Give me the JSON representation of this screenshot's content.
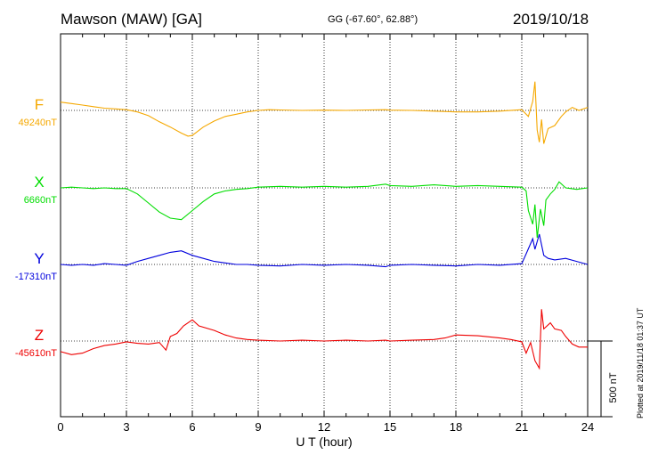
{
  "header": {
    "station": "Mawson (MAW)  [GA]",
    "coords": "GG (-67.60°,  62.88°)",
    "date": "2019/10/18"
  },
  "footer": {
    "plotted": "Plotted at 2019/11/18 01:37 UT"
  },
  "chart_data": {
    "type": "line",
    "title": "Mawson (MAW)  [GA]",
    "xlabel": "U T (hour)",
    "ylabel": "",
    "xlim": [
      0,
      24
    ],
    "xticks": [
      0,
      3,
      6,
      9,
      12,
      15,
      18,
      21,
      24
    ],
    "grid": true,
    "scale_bar": {
      "label": "500 nT",
      "value_nT": 500
    },
    "series": [
      {
        "name": "F",
        "baseline_label": "49240nT",
        "baseline_nT": 49240,
        "color": "#f5a800",
        "points": [
          [
            0,
            55
          ],
          [
            0.5,
            45
          ],
          [
            1,
            35
          ],
          [
            1.5,
            25
          ],
          [
            2,
            15
          ],
          [
            2.5,
            10
          ],
          [
            3,
            5
          ],
          [
            3.5,
            -10
          ],
          [
            4,
            -35
          ],
          [
            4.5,
            -75
          ],
          [
            5,
            -110
          ],
          [
            5.5,
            -150
          ],
          [
            5.8,
            -170
          ],
          [
            6,
            -165
          ],
          [
            6.5,
            -110
          ],
          [
            7,
            -70
          ],
          [
            7.5,
            -40
          ],
          [
            8,
            -25
          ],
          [
            8.5,
            -10
          ],
          [
            9,
            0
          ],
          [
            9.5,
            5
          ],
          [
            10,
            3
          ],
          [
            11,
            0
          ],
          [
            12,
            2
          ],
          [
            13,
            0
          ],
          [
            14,
            3
          ],
          [
            14.8,
            5
          ],
          [
            15,
            2
          ],
          [
            16,
            0
          ],
          [
            17,
            -5
          ],
          [
            18,
            -10
          ],
          [
            19,
            -10
          ],
          [
            20,
            -5
          ],
          [
            21,
            5
          ],
          [
            21.3,
            -40
          ],
          [
            21.5,
            60
          ],
          [
            21.6,
            190
          ],
          [
            21.7,
            -130
          ],
          [
            21.8,
            -210
          ],
          [
            21.9,
            -60
          ],
          [
            22,
            -220
          ],
          [
            22.2,
            -120
          ],
          [
            22.5,
            -100
          ],
          [
            22.8,
            -40
          ],
          [
            23,
            -10
          ],
          [
            23.3,
            20
          ],
          [
            23.6,
            0
          ],
          [
            24,
            20
          ]
        ]
      },
      {
        "name": "X",
        "baseline_label": "6660nT",
        "baseline_nT": 6660,
        "color": "#00dd00",
        "points": [
          [
            0,
            0
          ],
          [
            0.5,
            5
          ],
          [
            1,
            0
          ],
          [
            1.5,
            -5
          ],
          [
            2,
            0
          ],
          [
            2.5,
            -5
          ],
          [
            3,
            -5
          ],
          [
            3.5,
            -40
          ],
          [
            4,
            -100
          ],
          [
            4.5,
            -160
          ],
          [
            5,
            -200
          ],
          [
            5.5,
            -210
          ],
          [
            6,
            -150
          ],
          [
            6.5,
            -90
          ],
          [
            7,
            -40
          ],
          [
            7.5,
            -20
          ],
          [
            8,
            -10
          ],
          [
            8.5,
            -5
          ],
          [
            9,
            5
          ],
          [
            10,
            10
          ],
          [
            11,
            5
          ],
          [
            12,
            10
          ],
          [
            13,
            5
          ],
          [
            14,
            10
          ],
          [
            14.8,
            25
          ],
          [
            15,
            15
          ],
          [
            16,
            10
          ],
          [
            17,
            20
          ],
          [
            18,
            10
          ],
          [
            19,
            15
          ],
          [
            20,
            10
          ],
          [
            21,
            5
          ],
          [
            21.2,
            -20
          ],
          [
            21.3,
            -150
          ],
          [
            21.5,
            -240
          ],
          [
            21.6,
            -110
          ],
          [
            21.7,
            -330
          ],
          [
            21.85,
            -140
          ],
          [
            22,
            -250
          ],
          [
            22.1,
            -80
          ],
          [
            22.3,
            -40
          ],
          [
            22.5,
            -10
          ],
          [
            22.7,
            40
          ],
          [
            23,
            0
          ],
          [
            23.5,
            -10
          ],
          [
            24,
            0
          ]
        ]
      },
      {
        "name": "Y",
        "baseline_label": "-17310nT",
        "baseline_nT": -17310,
        "color": "#0000dd",
        "points": [
          [
            0,
            0
          ],
          [
            0.5,
            -5
          ],
          [
            1,
            0
          ],
          [
            1.5,
            -5
          ],
          [
            2,
            5
          ],
          [
            2.5,
            0
          ],
          [
            3,
            -5
          ],
          [
            3.5,
            20
          ],
          [
            4,
            40
          ],
          [
            4.5,
            60
          ],
          [
            5,
            80
          ],
          [
            5.5,
            90
          ],
          [
            6,
            60
          ],
          [
            6.5,
            40
          ],
          [
            7,
            20
          ],
          [
            7.5,
            10
          ],
          [
            8,
            0
          ],
          [
            8.5,
            0
          ],
          [
            9,
            -5
          ],
          [
            10,
            -10
          ],
          [
            11,
            0
          ],
          [
            12,
            -5
          ],
          [
            13,
            0
          ],
          [
            14,
            -5
          ],
          [
            14.8,
            -15
          ],
          [
            15,
            -5
          ],
          [
            16,
            0
          ],
          [
            17,
            -5
          ],
          [
            18,
            -10
          ],
          [
            19,
            0
          ],
          [
            20,
            -5
          ],
          [
            21,
            5
          ],
          [
            21.2,
            70
          ],
          [
            21.5,
            170
          ],
          [
            21.6,
            100
          ],
          [
            21.8,
            200
          ],
          [
            22,
            60
          ],
          [
            22.2,
            40
          ],
          [
            22.5,
            30
          ],
          [
            23,
            40
          ],
          [
            23.5,
            20
          ],
          [
            24,
            0
          ]
        ]
      },
      {
        "name": "Z",
        "baseline_label": "-45610nT",
        "baseline_nT": -45610,
        "color": "#ee0000",
        "points": [
          [
            0,
            -70
          ],
          [
            0.5,
            -90
          ],
          [
            1,
            -80
          ],
          [
            1.5,
            -50
          ],
          [
            2,
            -30
          ],
          [
            2.5,
            -20
          ],
          [
            3,
            -5
          ],
          [
            3.5,
            -15
          ],
          [
            4,
            -20
          ],
          [
            4.5,
            -10
          ],
          [
            4.8,
            -60
          ],
          [
            5,
            30
          ],
          [
            5.3,
            50
          ],
          [
            5.6,
            100
          ],
          [
            6,
            140
          ],
          [
            6.3,
            100
          ],
          [
            7,
            70
          ],
          [
            7.5,
            40
          ],
          [
            8,
            20
          ],
          [
            8.5,
            10
          ],
          [
            9,
            5
          ],
          [
            10,
            0
          ],
          [
            11,
            5
          ],
          [
            12,
            0
          ],
          [
            13,
            5
          ],
          [
            14,
            0
          ],
          [
            14.8,
            5
          ],
          [
            15,
            0
          ],
          [
            16,
            5
          ],
          [
            17,
            10
          ],
          [
            17.5,
            20
          ],
          [
            18,
            40
          ],
          [
            19,
            35
          ],
          [
            20,
            20
          ],
          [
            20.5,
            10
          ],
          [
            21,
            -5
          ],
          [
            21.2,
            -80
          ],
          [
            21.4,
            -10
          ],
          [
            21.6,
            -130
          ],
          [
            21.8,
            -180
          ],
          [
            21.9,
            210
          ],
          [
            22,
            80
          ],
          [
            22.3,
            120
          ],
          [
            22.5,
            80
          ],
          [
            22.8,
            70
          ],
          [
            23,
            30
          ],
          [
            23.3,
            -20
          ],
          [
            23.6,
            -40
          ],
          [
            24,
            -40
          ]
        ]
      }
    ]
  }
}
